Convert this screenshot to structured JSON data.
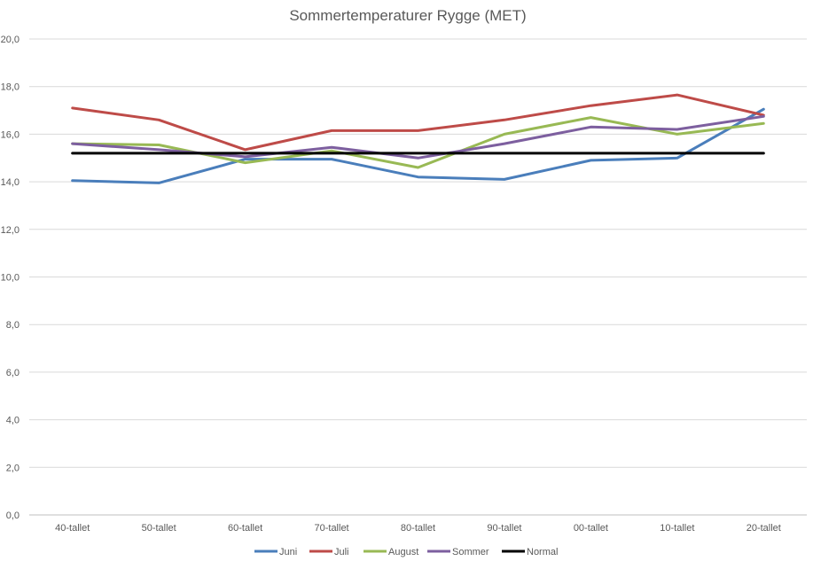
{
  "chart_data": {
    "type": "line",
    "title": "Sommertemperaturer Rygge (MET)",
    "xlabel": "",
    "ylabel": "",
    "categories": [
      "40-tallet",
      "50-tallet",
      "60-tallet",
      "70-tallet",
      "80-tallet",
      "90-tallet",
      "00-tallet",
      "10-tallet",
      "20-tallet"
    ],
    "ylim": [
      0,
      20
    ],
    "yticks": [
      "0,0",
      "2,0",
      "4,0",
      "6,0",
      "8,0",
      "10,0",
      "12,0",
      "14,0",
      "16,0",
      "18,0",
      "20,0"
    ],
    "grid": true,
    "legend_position": "bottom",
    "series": [
      {
        "name": "Juni",
        "color": "#4A7EBB",
        "values": [
          14.05,
          13.95,
          14.95,
          14.95,
          14.2,
          14.1,
          14.9,
          15.0,
          17.05
        ]
      },
      {
        "name": "Juli",
        "color": "#BE4B48",
        "values": [
          17.1,
          16.6,
          15.35,
          16.15,
          16.15,
          16.6,
          17.2,
          17.65,
          16.8
        ]
      },
      {
        "name": "August",
        "color": "#98B954",
        "values": [
          15.6,
          15.55,
          14.8,
          15.3,
          14.6,
          16.0,
          16.7,
          16.0,
          16.45
        ]
      },
      {
        "name": "Sommer",
        "color": "#7D5F9F",
        "values": [
          15.6,
          15.35,
          15.05,
          15.45,
          15.0,
          15.6,
          16.3,
          16.2,
          16.75
        ]
      },
      {
        "name": "Normal",
        "color": "#000000",
        "values": [
          15.2,
          15.2,
          15.2,
          15.2,
          15.2,
          15.2,
          15.2,
          15.2,
          15.2
        ]
      }
    ]
  }
}
